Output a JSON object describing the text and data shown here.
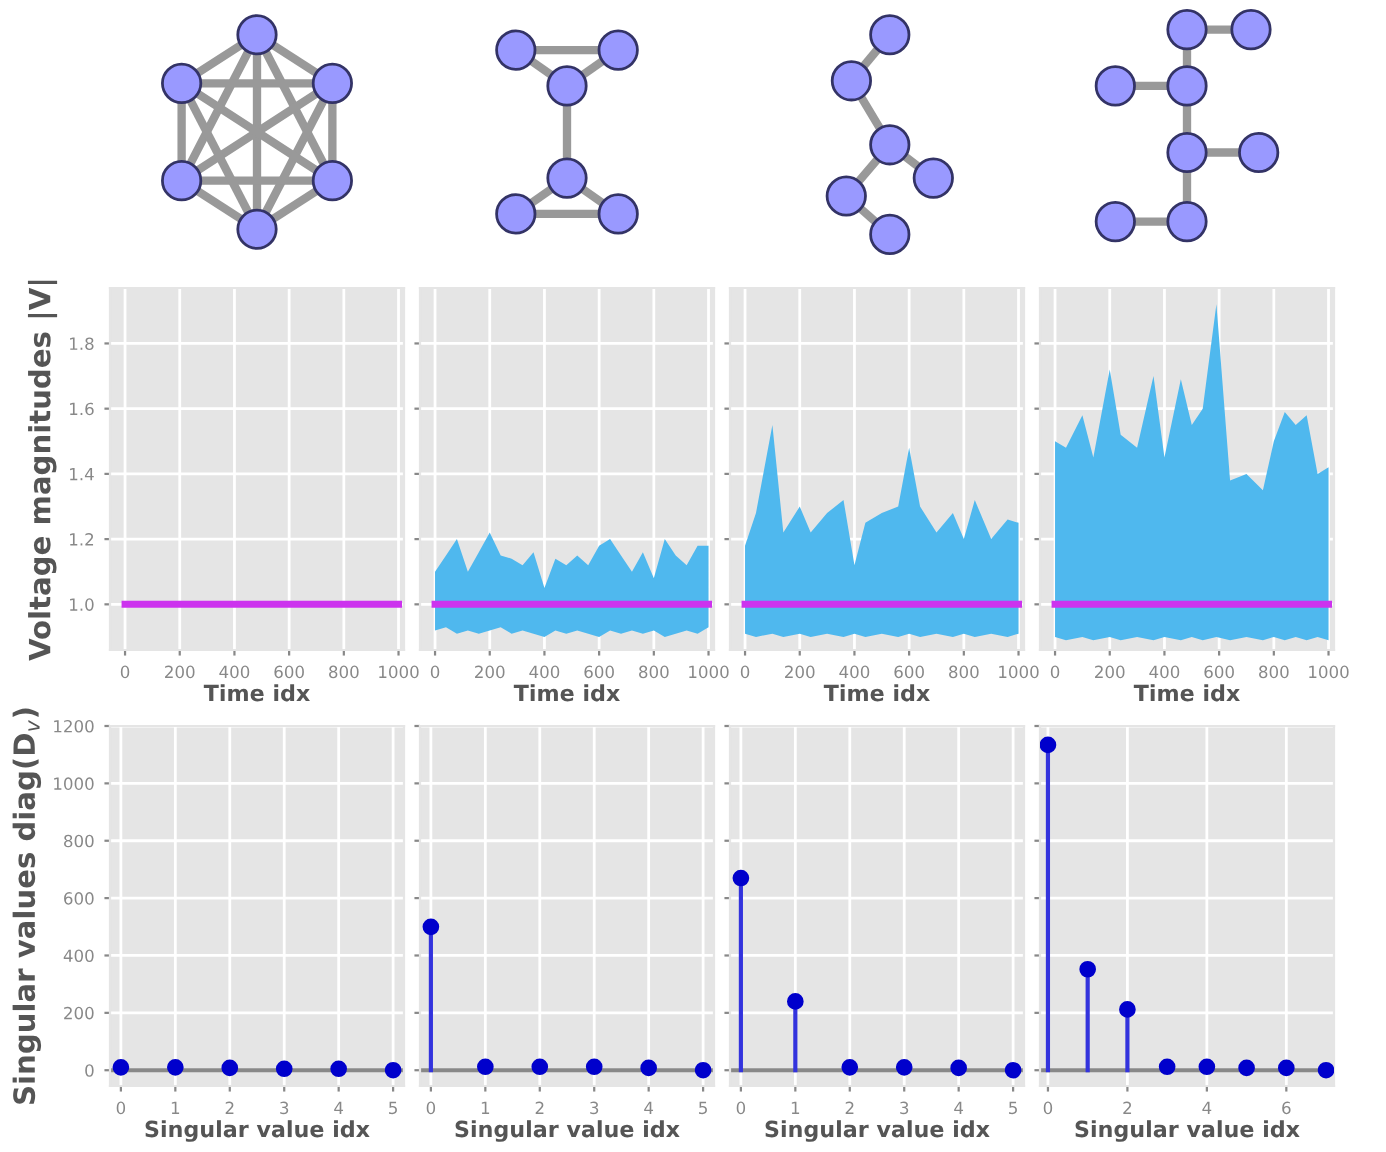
{
  "chart_data": [
    {
      "type": "line",
      "xlabel": "Time idx",
      "ylabel": "Voltage magnitudes |V|",
      "xlim": [
        -55,
        1020
      ],
      "ylim": [
        0.86,
        1.97
      ],
      "xticks": [
        0,
        200,
        400,
        600,
        800,
        1000
      ],
      "yticks": [
        {
          "value": 1,
          "label": "1.0"
        },
        1.2,
        1.4,
        1.6,
        1.8
      ],
      "grid": true,
      "series": [
        {
          "color": "#cc33ee",
          "x": [
            0,
            1000
          ],
          "values": [
            1.0,
            1.0
          ]
        }
      ]
    },
    {
      "type": "line",
      "xlabel": "Time idx",
      "xlim": [
        -55,
        1020
      ],
      "ylim": [
        0.86,
        1.97
      ],
      "xticks": [
        0,
        200,
        400,
        600,
        800,
        1000
      ],
      "yticks": [
        1.0,
        1.2,
        1.4,
        1.6,
        1.8
      ],
      "grid": true,
      "tick_labels": "x",
      "series": [
        {
          "color": "#cc33ee",
          "x": [
            0,
            40,
            80,
            120,
            160,
            200,
            240,
            280,
            320,
            360,
            400,
            440,
            480,
            520,
            560,
            600,
            640,
            680,
            720,
            760,
            800,
            840,
            880,
            920,
            960,
            1000
          ],
          "values": [
            1.0,
            1.0,
            1.0,
            1.0,
            1.0,
            1.0,
            1.0,
            1.0,
            1.0,
            1.0,
            1.0,
            1.0,
            1.0,
            1.0,
            1.0,
            1.0,
            1.0,
            1.0,
            1.0,
            1.0,
            1.0,
            1.0,
            1.0,
            1.0,
            1.0,
            1.0
          ],
          "lower": [
            0.92,
            0.93,
            0.91,
            0.92,
            0.91,
            0.92,
            0.93,
            0.91,
            0.92,
            0.91,
            0.9,
            0.92,
            0.91,
            0.92,
            0.91,
            0.9,
            0.92,
            0.91,
            0.92,
            0.91,
            0.92,
            0.9,
            0.91,
            0.92,
            0.91,
            0.93
          ],
          "upper": [
            1.1,
            1.15,
            1.2,
            1.1,
            1.16,
            1.22,
            1.15,
            1.14,
            1.12,
            1.16,
            1.05,
            1.14,
            1.12,
            1.15,
            1.12,
            1.18,
            1.2,
            1.15,
            1.1,
            1.16,
            1.08,
            1.2,
            1.15,
            1.12,
            1.18,
            1.18
          ]
        }
      ]
    },
    {
      "type": "line",
      "xlabel": "Time idx",
      "xlim": [
        -55,
        1020
      ],
      "ylim": [
        0.86,
        1.97
      ],
      "xticks": [
        0,
        200,
        400,
        600,
        800,
        1000
      ],
      "yticks": [
        1.0,
        1.2,
        1.4,
        1.6,
        1.8
      ],
      "grid": true,
      "tick_labels": "x",
      "series": [
        {
          "color": "#cc33ee",
          "x": [
            0,
            40,
            100,
            140,
            200,
            240,
            300,
            360,
            400,
            440,
            500,
            560,
            600,
            640,
            700,
            760,
            800,
            840,
            900,
            960,
            1000
          ],
          "values": [
            1.0,
            1.0,
            1.0,
            1.0,
            1.0,
            1.0,
            1.0,
            1.0,
            1.0,
            1.0,
            1.0,
            1.0,
            1.0,
            1.0,
            1.0,
            1.0,
            1.0,
            1.0,
            1.0,
            1.0,
            1.0
          ],
          "lower": [
            0.91,
            0.9,
            0.91,
            0.9,
            0.91,
            0.9,
            0.91,
            0.9,
            0.91,
            0.9,
            0.91,
            0.9,
            0.91,
            0.9,
            0.91,
            0.9,
            0.91,
            0.9,
            0.91,
            0.9,
            0.91
          ],
          "upper": [
            1.18,
            1.28,
            1.55,
            1.22,
            1.3,
            1.22,
            1.28,
            1.32,
            1.12,
            1.25,
            1.28,
            1.3,
            1.48,
            1.3,
            1.22,
            1.28,
            1.2,
            1.32,
            1.2,
            1.26,
            1.25
          ]
        }
      ]
    },
    {
      "type": "line",
      "xlabel": "Time idx",
      "xlim": [
        -55,
        1020
      ],
      "ylim": [
        0.86,
        1.97
      ],
      "xticks": [
        0,
        200,
        400,
        600,
        800,
        1000
      ],
      "yticks": [
        1.0,
        1.2,
        1.4,
        1.6,
        1.8
      ],
      "grid": true,
      "tick_labels": "x",
      "series": [
        {
          "color": "#cc33ee",
          "x": [
            0,
            40,
            100,
            140,
            200,
            240,
            300,
            360,
            400,
            460,
            500,
            540,
            590,
            640,
            700,
            760,
            800,
            840,
            880,
            920,
            960,
            1000
          ],
          "values": [
            1.0,
            1.0,
            1.0,
            1.0,
            1.0,
            1.0,
            1.0,
            1.0,
            1.0,
            1.0,
            1.0,
            1.0,
            1.0,
            1.0,
            1.0,
            1.0,
            1.0,
            1.0,
            1.0,
            1.0,
            1.0,
            1.0
          ],
          "lower": [
            0.9,
            0.89,
            0.9,
            0.89,
            0.9,
            0.89,
            0.9,
            0.89,
            0.9,
            0.89,
            0.9,
            0.89,
            0.9,
            0.89,
            0.9,
            0.89,
            0.9,
            0.89,
            0.9,
            0.89,
            0.9,
            0.89
          ],
          "upper": [
            1.5,
            1.48,
            1.58,
            1.45,
            1.72,
            1.52,
            1.48,
            1.7,
            1.45,
            1.69,
            1.55,
            1.6,
            1.92,
            1.38,
            1.4,
            1.35,
            1.5,
            1.59,
            1.55,
            1.58,
            1.4,
            1.42
          ]
        }
      ]
    },
    {
      "type": "lollipop",
      "xlabel": "Singular value idx",
      "ylabel": "Singular values diag(D$_{v}$)",
      "xlim": [
        -0.2,
        5.2
      ],
      "ylim": [
        -55,
        1200
      ],
      "xticks": [
        0,
        1,
        2,
        3,
        4,
        5
      ],
      "yticks": [
        0,
        200,
        400,
        600,
        800,
        1000,
        1200
      ],
      "grid": true,
      "marker": "circle",
      "series": [
        {
          "color": "#0000cc",
          "x": [
            0,
            1,
            2,
            3,
            4,
            5
          ],
          "values": [
            10,
            10,
            8,
            5,
            5,
            0
          ]
        }
      ]
    },
    {
      "type": "lollipop",
      "xlabel": "Singular value idx",
      "xlim": [
        -0.2,
        5.2
      ],
      "ylim": [
        -55,
        1200
      ],
      "xticks": [
        0,
        1,
        2,
        3,
        4,
        5
      ],
      "yticks": [
        0,
        200,
        400,
        600,
        800,
        1000,
        1200
      ],
      "grid": true,
      "marker": "circle",
      "tick_labels": "x",
      "series": [
        {
          "color": "#0000cc",
          "x": [
            0,
            1,
            2,
            3,
            4,
            5
          ],
          "values": [
            500,
            12,
            12,
            12,
            8,
            0
          ]
        }
      ]
    },
    {
      "type": "lollipop",
      "xlabel": "Singular value idx",
      "xlim": [
        -0.2,
        5.2
      ],
      "ylim": [
        -55,
        1200
      ],
      "xticks": [
        0,
        1,
        2,
        3,
        4,
        5
      ],
      "yticks": [
        0,
        200,
        400,
        600,
        800,
        1000,
        1200
      ],
      "grid": true,
      "marker": "circle",
      "tick_labels": "x",
      "series": [
        {
          "color": "#0000cc",
          "x": [
            0,
            1,
            2,
            3,
            4,
            5
          ],
          "values": [
            670,
            240,
            10,
            10,
            8,
            0
          ]
        }
      ]
    },
    {
      "type": "lollipop",
      "xlabel": "Singular value idx",
      "xlim": [
        -0.2,
        7.2
      ],
      "ylim": [
        -55,
        1200
      ],
      "xticks": [
        0,
        2,
        4,
        6
      ],
      "yticks": [
        0,
        200,
        400,
        600,
        800,
        1000,
        1200
      ],
      "grid": true,
      "marker": "circle",
      "tick_labels": "x",
      "series": [
        {
          "color": "#0000cc",
          "x": [
            0,
            1,
            2,
            3,
            4,
            5,
            6,
            7
          ],
          "values": [
            1134,
            352,
            212,
            12,
            12,
            8,
            8,
            0
          ]
        }
      ]
    }
  ]
}
